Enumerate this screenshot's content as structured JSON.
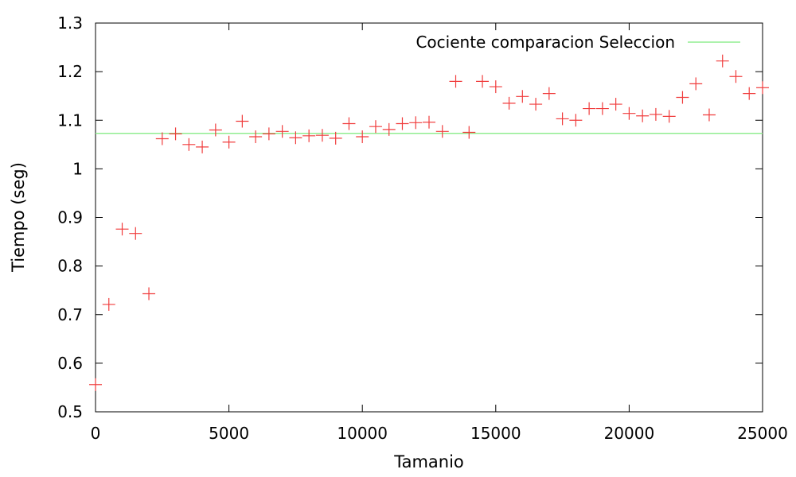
{
  "chart_data": {
    "type": "scatter",
    "title": "",
    "xlabel": "Tamanio",
    "ylabel": "Tiempo (seg)",
    "xlim": [
      0,
      25000
    ],
    "ylim": [
      0.5,
      1.3
    ],
    "x_ticks": [
      0,
      5000,
      10000,
      15000,
      20000,
      25000
    ],
    "y_ticks": [
      0.5,
      0.6,
      0.7,
      0.8,
      0.9,
      1,
      1.1,
      1.2,
      1.3
    ],
    "x_tick_labels": [
      "0",
      "5000",
      "10000",
      "15000",
      "20000",
      "25000"
    ],
    "y_tick_labels": [
      "0.5",
      "0.6",
      "0.7",
      "0.8",
      "0.9",
      "1",
      "1.1",
      "1.2",
      "1.3"
    ],
    "grid": false,
    "legend_position": "top-right",
    "series": [
      {
        "marker": "plus",
        "color": "#f03c3c",
        "x": [
          0,
          500,
          1000,
          1500,
          2000,
          2500,
          3000,
          3500,
          4000,
          4500,
          5000,
          5500,
          6000,
          6500,
          7000,
          7500,
          8000,
          8500,
          9000,
          9500,
          10000,
          10500,
          11000,
          11500,
          12000,
          12500,
          13000,
          13500,
          14000,
          14500,
          15000,
          15500,
          16000,
          16500,
          17000,
          17500,
          18000,
          18500,
          19000,
          19500,
          20000,
          20500,
          21000,
          21500,
          22000,
          22500,
          23000,
          23500,
          24000,
          24500,
          25000
        ],
        "y": [
          0.556,
          0.721,
          0.876,
          0.867,
          0.743,
          1.062,
          1.072,
          1.05,
          1.045,
          1.08,
          1.055,
          1.098,
          1.066,
          1.072,
          1.077,
          1.064,
          1.068,
          1.069,
          1.063,
          1.093,
          1.066,
          1.087,
          1.081,
          1.093,
          1.095,
          1.096,
          1.077,
          1.18,
          1.075,
          1.18,
          1.169,
          1.135,
          1.149,
          1.133,
          1.155,
          1.103,
          1.1,
          1.124,
          1.124,
          1.133,
          1.114,
          1.109,
          1.112,
          1.108,
          1.147,
          1.175,
          1.111,
          1.222,
          1.19,
          1.155,
          1.167
        ]
      },
      {
        "name": "Cociente comparacion Seleccion",
        "marker": "line",
        "color": "#90ee90",
        "constant_y": 1.073
      }
    ]
  }
}
